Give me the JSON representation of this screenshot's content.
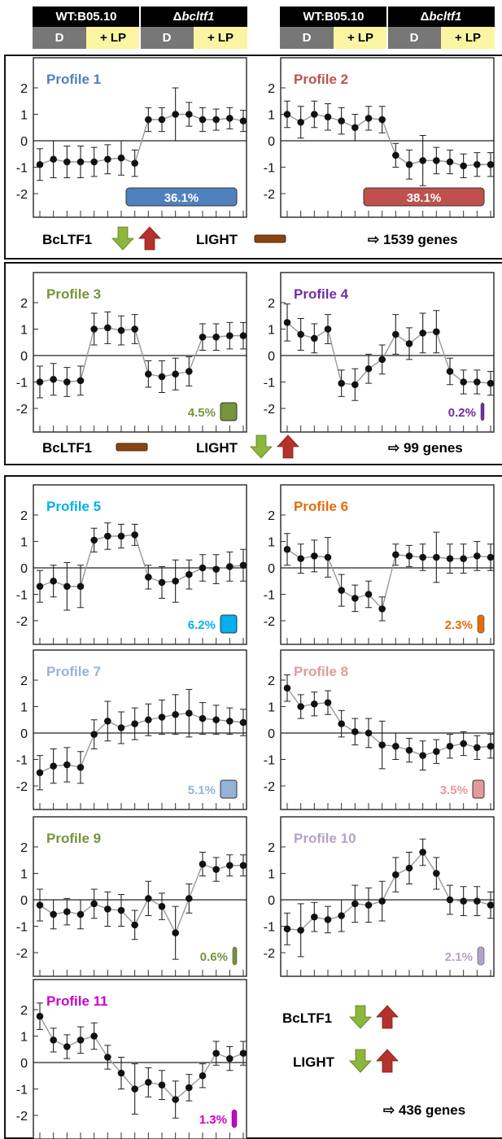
{
  "header": {
    "columns": [
      {
        "title": "WT:B05.10",
        "title_italic": "",
        "conditions": [
          "D",
          "+ LP"
        ]
      },
      {
        "title": "Δ",
        "title_italic": "bcltf1",
        "conditions": [
          "D",
          "+ LP"
        ]
      }
    ]
  },
  "groups": [
    {
      "factors": [
        {
          "label": "BcLTF1",
          "symbol": "down-up-arrows-icon"
        },
        {
          "label": "LIGHT",
          "symbol": "flat-bar-icon"
        }
      ],
      "count_text": "⇨ 1539 genes"
    },
    {
      "factors": [
        {
          "label": "BcLTF1",
          "symbol": "flat-bar-icon"
        },
        {
          "label": "LIGHT",
          "symbol": "down-up-arrows-icon"
        }
      ],
      "count_text": "⇨ 99 genes"
    },
    {
      "factors": [
        {
          "label": "BcLTF1",
          "symbol": "down-up-arrows-icon"
        },
        {
          "label": "LIGHT",
          "symbol": "down-up-arrows-icon"
        }
      ],
      "count_text": "⇨ 436 genes"
    }
  ],
  "colors": {
    "p1": "#4f81bd",
    "p2": "#c0504d",
    "p3": "#77933c",
    "p4": "#7030a0",
    "p5": "#00b0f0",
    "p6": "#e36c09",
    "p7": "#95b3d7",
    "p8": "#e6999b",
    "p9": "#77933c",
    "p10": "#b3a2c7",
    "p11": "#cc00cc",
    "arrow_down": "#8cb63c",
    "arrow_up": "#b5312c",
    "flat_bar": "#8b4513"
  },
  "chart_data": [
    {
      "type": "line",
      "title": "Profile 1",
      "percent": "36.1%",
      "color_key": "p1",
      "yticks": [
        2,
        1,
        0,
        -1,
        -2
      ],
      "ylim": [
        -3,
        3
      ],
      "values": [
        -0.9,
        -0.7,
        -0.8,
        -0.8,
        -0.8,
        -0.7,
        -0.65,
        -0.85,
        0.8,
        0.8,
        1.0,
        1.0,
        0.8,
        0.8,
        0.85,
        0.75
      ],
      "errors": [
        0.6,
        0.7,
        0.6,
        0.6,
        0.55,
        0.55,
        0.65,
        0.5,
        0.45,
        0.45,
        1.0,
        0.45,
        0.45,
        0.4,
        0.4,
        0.4
      ]
    },
    {
      "type": "line",
      "title": "Profile 2",
      "percent": "38.1%",
      "color_key": "p2",
      "yticks": [
        2,
        1,
        0,
        -1,
        -2
      ],
      "ylim": [
        -3,
        3
      ],
      "values": [
        1.0,
        0.7,
        1.0,
        0.9,
        0.75,
        0.5,
        0.85,
        0.8,
        -0.55,
        -0.9,
        -0.75,
        -0.75,
        -0.8,
        -0.95,
        -0.9,
        -0.9
      ],
      "errors": [
        0.5,
        0.6,
        0.5,
        0.5,
        0.5,
        0.5,
        0.45,
        0.5,
        0.45,
        0.55,
        0.95,
        0.5,
        0.45,
        0.45,
        0.45,
        0.45
      ]
    },
    {
      "type": "line",
      "title": "Profile 3",
      "percent": "4.5%",
      "color_key": "p3",
      "yticks": [
        2,
        1,
        0,
        -1,
        -2
      ],
      "ylim": [
        -3,
        3
      ],
      "values": [
        -1.0,
        -0.9,
        -1.0,
        -0.95,
        1.0,
        1.05,
        0.95,
        1.0,
        -0.7,
        -0.8,
        -0.7,
        -0.6,
        0.7,
        0.7,
        0.75,
        0.75
      ],
      "errors": [
        0.6,
        0.6,
        0.55,
        0.55,
        0.6,
        0.6,
        0.55,
        0.55,
        0.5,
        0.6,
        0.6,
        0.55,
        0.5,
        0.5,
        0.5,
        0.5
      ]
    },
    {
      "type": "line",
      "title": "Profile 4",
      "percent": "0.2%",
      "color_key": "p4",
      "yticks": [
        2,
        1,
        0,
        -1,
        -2
      ],
      "ylim": [
        -3,
        3
      ],
      "values": [
        1.25,
        0.8,
        0.65,
        1.0,
        -1.05,
        -1.1,
        -0.5,
        -0.15,
        0.8,
        0.45,
        0.85,
        0.9,
        -0.6,
        -1.0,
        -1.0,
        -1.05
      ],
      "errors": [
        0.7,
        0.6,
        0.55,
        0.55,
        0.5,
        0.6,
        0.55,
        0.55,
        0.75,
        0.6,
        0.75,
        0.8,
        0.5,
        0.45,
        0.45,
        0.45
      ]
    },
    {
      "type": "line",
      "title": "Profile 5",
      "percent": "6.2%",
      "color_key": "p5",
      "yticks": [
        2,
        1,
        0,
        -1,
        -2
      ],
      "ylim": [
        -3,
        3
      ],
      "values": [
        -0.7,
        -0.5,
        -0.7,
        -0.7,
        1.05,
        1.2,
        1.2,
        1.25,
        -0.35,
        -0.55,
        -0.5,
        -0.25,
        0.0,
        -0.05,
        0.05,
        0.1
      ],
      "errors": [
        0.6,
        0.6,
        0.9,
        0.8,
        0.45,
        0.5,
        0.45,
        0.4,
        0.45,
        0.6,
        0.8,
        0.55,
        0.5,
        0.55,
        0.55,
        0.6
      ]
    },
    {
      "type": "line",
      "title": "Profile 6",
      "percent": "2.3%",
      "color_key": "p6",
      "yticks": [
        2,
        1,
        0,
        -1,
        -2
      ],
      "ylim": [
        -3,
        3
      ],
      "values": [
        0.7,
        0.35,
        0.45,
        0.4,
        -0.85,
        -1.15,
        -1.0,
        -1.55,
        0.5,
        0.45,
        0.4,
        0.4,
        0.35,
        0.35,
        0.45,
        0.4
      ],
      "errors": [
        0.6,
        0.55,
        0.6,
        0.75,
        0.6,
        0.5,
        0.5,
        0.45,
        0.4,
        0.4,
        0.5,
        0.95,
        0.55,
        0.55,
        0.55,
        0.5
      ]
    },
    {
      "type": "line",
      "title": "Profile 7",
      "percent": "5.1%",
      "color_key": "p7",
      "yticks": [
        2,
        1,
        0,
        -1,
        -2
      ],
      "ylim": [
        -3,
        3
      ],
      "values": [
        -1.5,
        -1.25,
        -1.2,
        -1.3,
        -0.05,
        0.45,
        0.2,
        0.35,
        0.5,
        0.6,
        0.7,
        0.75,
        0.55,
        0.5,
        0.45,
        0.4
      ],
      "errors": [
        0.65,
        0.65,
        0.65,
        0.6,
        0.55,
        0.75,
        0.6,
        0.6,
        0.6,
        0.65,
        0.75,
        0.9,
        0.6,
        0.55,
        0.5,
        0.5
      ]
    },
    {
      "type": "line",
      "title": "Profile 8",
      "percent": "3.5%",
      "color_key": "p8",
      "yticks": [
        2,
        1,
        0,
        -1,
        -2
      ],
      "ylim": [
        -3,
        3
      ],
      "values": [
        1.7,
        1.0,
        1.1,
        1.15,
        0.35,
        0.05,
        0.0,
        -0.45,
        -0.5,
        -0.65,
        -0.85,
        -0.7,
        -0.5,
        -0.4,
        -0.55,
        -0.5
      ],
      "errors": [
        0.5,
        0.45,
        0.45,
        0.45,
        0.5,
        0.5,
        0.55,
        0.9,
        0.5,
        0.45,
        0.55,
        0.45,
        0.45,
        0.45,
        0.45,
        0.45
      ]
    },
    {
      "type": "line",
      "title": "Profile 9",
      "percent": "0.6%",
      "color_key": "p9",
      "yticks": [
        2,
        1,
        0,
        -1,
        -2
      ],
      "ylim": [
        -3,
        3
      ],
      "values": [
        -0.2,
        -0.55,
        -0.45,
        -0.55,
        -0.15,
        -0.35,
        -0.4,
        -0.95,
        0.05,
        -0.25,
        -1.25,
        0.05,
        1.35,
        1.15,
        1.3,
        1.3
      ],
      "errors": [
        0.6,
        0.55,
        0.5,
        0.55,
        0.55,
        0.65,
        0.6,
        0.55,
        0.65,
        0.5,
        1.0,
        0.55,
        0.45,
        0.45,
        0.4,
        0.4
      ]
    },
    {
      "type": "line",
      "title": "Profile 10",
      "percent": "2.1%",
      "color_key": "p10",
      "yticks": [
        2,
        1,
        0,
        -1,
        -2
      ],
      "ylim": [
        -3,
        3
      ],
      "values": [
        -1.1,
        -1.15,
        -0.65,
        -0.75,
        -0.6,
        -0.15,
        -0.2,
        -0.05,
        0.95,
        1.2,
        1.8,
        1.0,
        0.0,
        -0.05,
        -0.05,
        -0.2
      ],
      "errors": [
        0.6,
        1.0,
        0.55,
        0.5,
        0.6,
        0.7,
        0.65,
        0.75,
        0.65,
        0.6,
        0.5,
        0.6,
        0.55,
        0.55,
        0.55,
        0.5
      ]
    },
    {
      "type": "line",
      "title": "Profile 11",
      "percent": "1.3%",
      "color_key": "p11",
      "yticks": [
        2,
        1,
        0,
        -1,
        -2
      ],
      "ylim": [
        -3,
        3
      ],
      "values": [
        1.75,
        0.85,
        0.6,
        0.85,
        1.0,
        0.2,
        -0.4,
        -1.0,
        -0.75,
        -0.85,
        -1.4,
        -0.95,
        -0.5,
        0.35,
        0.15,
        0.35
      ],
      "errors": [
        0.5,
        0.45,
        0.45,
        0.5,
        0.5,
        0.45,
        0.6,
        0.95,
        0.55,
        0.55,
        0.7,
        0.5,
        0.45,
        0.45,
        0.45,
        0.45
      ]
    }
  ]
}
